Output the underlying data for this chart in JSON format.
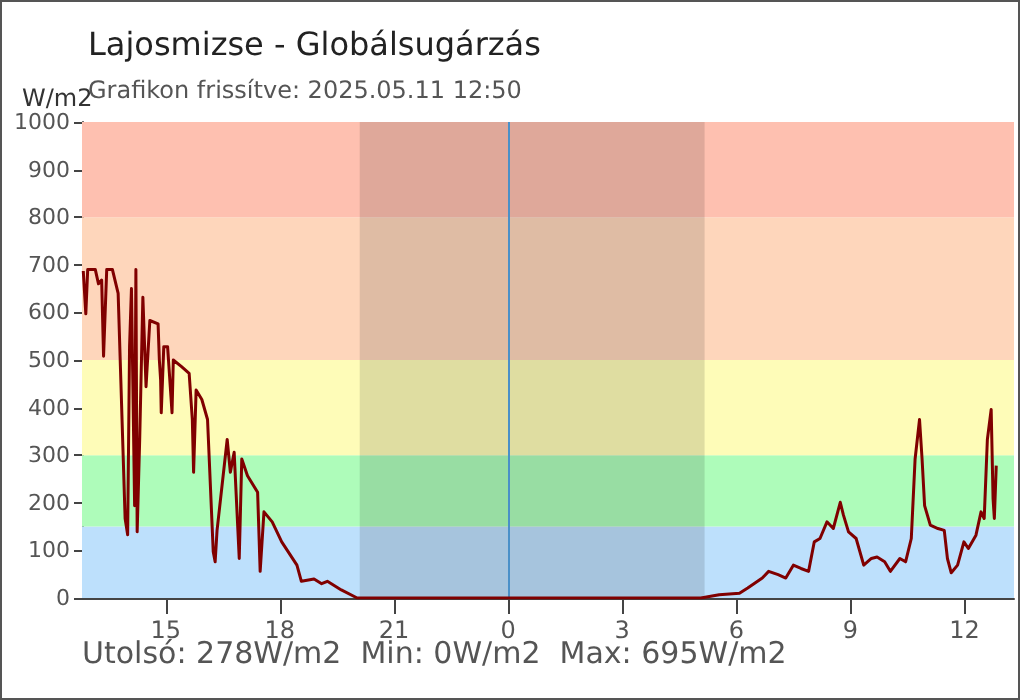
{
  "chart_data": {
    "type": "line",
    "title": "Lajosmizse - Globálsugárzás",
    "subtitle": "Grafikon frissítve: 2025.05.11 12:50",
    "ylabel": "W/m2",
    "annotations": [
      "Utolsó: 278W/m2",
      "Min: 0W/m2",
      "Max: 695W/m2"
    ],
    "xlim": [
      "2025-05-10T12:48",
      "2025-05-11T13:18"
    ],
    "xticks": [
      {
        "value": "2025-05-10T15:00",
        "label": "15"
      },
      {
        "value": "2025-05-10T18:00",
        "label": "18"
      },
      {
        "value": "2025-05-10T21:00",
        "label": "21"
      },
      {
        "value": "2025-05-11T00:00",
        "label": "0"
      },
      {
        "value": "2025-05-11T03:00",
        "label": "3"
      },
      {
        "value": "2025-05-11T06:00",
        "label": "6"
      },
      {
        "value": "2025-05-11T09:00",
        "label": "9"
      },
      {
        "value": "2025-05-11T12:00",
        "label": "12"
      }
    ],
    "ylim": [
      0,
      1000
    ],
    "yticks": [
      0,
      100,
      200,
      300,
      400,
      500,
      600,
      700,
      800,
      900,
      1000
    ],
    "bands": [
      {
        "axis": "y",
        "from": 0,
        "to": 150,
        "color": "#bde0fc"
      },
      {
        "axis": "y",
        "from": 150,
        "to": 300,
        "color": "#aefcba"
      },
      {
        "axis": "y",
        "from": 300,
        "to": 500,
        "color": "#fefcb8"
      },
      {
        "axis": "y",
        "from": 500,
        "to": 800,
        "color": "#fed6bb"
      },
      {
        "axis": "y",
        "from": 800,
        "to": 1000,
        "color": "#fec0b0"
      },
      {
        "axis": "x",
        "from": "2025-05-10T20:06",
        "to": "2025-05-11T05:10",
        "color": "#000000"
      }
    ],
    "ref_lines": [
      {
        "axis": "x",
        "value": "2025-05-11T00:00",
        "color": "#4a90c8"
      }
    ],
    "series": [
      {
        "color": "#800000",
        "x": [
          "2025-05-10T12:50",
          "2025-05-10T12:54",
          "2025-05-10T12:57",
          "2025-05-10T13:09",
          "2025-05-10T13:14",
          "2025-05-10T13:19",
          "2025-05-10T13:22",
          "2025-05-10T13:27",
          "2025-05-10T13:36",
          "2025-05-10T13:45",
          "2025-05-10T13:56",
          "2025-05-10T14:00",
          "2025-05-10T14:03",
          "2025-05-10T14:06",
          "2025-05-10T14:11",
          "2025-05-10T14:13",
          "2025-05-10T14:15",
          "2025-05-10T14:19",
          "2025-05-10T14:24",
          "2025-05-10T14:29",
          "2025-05-10T14:35",
          "2025-05-10T14:48",
          "2025-05-10T14:50",
          "2025-05-10T14:52",
          "2025-05-10T14:53",
          "2025-05-10T14:57",
          "2025-05-10T15:03",
          "2025-05-10T15:10",
          "2025-05-10T15:12",
          "2025-05-10T15:25",
          "2025-05-10T15:37",
          "2025-05-10T15:42",
          "2025-05-10T15:44",
          "2025-05-10T15:48",
          "2025-05-10T15:57",
          "2025-05-10T16:06",
          "2025-05-10T16:15",
          "2025-05-10T16:18",
          "2025-05-10T16:21",
          "2025-05-10T16:37",
          "2025-05-10T16:42",
          "2025-05-10T16:48",
          "2025-05-10T16:56",
          "2025-05-10T17:00",
          "2025-05-10T17:09",
          "2025-05-10T17:25",
          "2025-05-10T17:29",
          "2025-05-10T17:35",
          "2025-05-10T17:48",
          "2025-05-10T18:03",
          "2025-05-10T18:27",
          "2025-05-10T18:34",
          "2025-05-10T18:54",
          "2025-05-10T19:06",
          "2025-05-10T19:15",
          "2025-05-10T19:37",
          "2025-05-10T20:02",
          "2025-05-10T20:12",
          "2025-05-11T05:04",
          "2025-05-11T05:33",
          "2025-05-11T06:05",
          "2025-05-11T06:18",
          "2025-05-11T06:41",
          "2025-05-11T06:51",
          "2025-05-11T07:06",
          "2025-05-11T07:18",
          "2025-05-11T07:30",
          "2025-05-11T07:42",
          "2025-05-11T07:54",
          "2025-05-11T08:03",
          "2025-05-11T08:12",
          "2025-05-11T08:23",
          "2025-05-11T08:33",
          "2025-05-11T08:44",
          "2025-05-11T08:49",
          "2025-05-11T08:57",
          "2025-05-11T09:09",
          "2025-05-11T09:21",
          "2025-05-11T09:33",
          "2025-05-11T09:42",
          "2025-05-11T09:54",
          "2025-05-11T10:03",
          "2025-05-11T10:18",
          "2025-05-11T10:27",
          "2025-05-11T10:36",
          "2025-05-11T10:42",
          "2025-05-11T10:49",
          "2025-05-11T10:53",
          "2025-05-11T10:57",
          "2025-05-11T11:06",
          "2025-05-11T11:18",
          "2025-05-11T11:28",
          "2025-05-11T11:33",
          "2025-05-11T11:39",
          "2025-05-11T11:49",
          "2025-05-11T11:59",
          "2025-05-11T12:06",
          "2025-05-11T12:18",
          "2025-05-11T12:26",
          "2025-05-11T12:31",
          "2025-05-11T12:36",
          "2025-05-11T12:42",
          "2025-05-11T12:45",
          "2025-05-11T12:47",
          "2025-05-11T12:50"
        ],
        "values": [
          687,
          597,
          690,
          690,
          660,
          668,
          508,
          690,
          690,
          640,
          167,
          133,
          528,
          650,
          194,
          690,
          139,
          333,
          632,
          444,
          583,
          576,
          500,
          458,
          389,
          528,
          528,
          389,
          500,
          486,
          472,
          375,
          264,
          437,
          417,
          375,
          97,
          76,
          142,
          333,
          264,
          306,
          83,
          292,
          257,
          222,
          56,
          181,
          160,
          118,
          69,
          35,
          40,
          30,
          35,
          17,
          0,
          0,
          0,
          7,
          10,
          21,
          42,
          56,
          49,
          42,
          69,
          62,
          56,
          118,
          125,
          160,
          146,
          201,
          174,
          139,
          125,
          69,
          83,
          86,
          76,
          56,
          83,
          76,
          125,
          292,
          375,
          292,
          194,
          153,
          146,
          142,
          83,
          53,
          69,
          118,
          104,
          132,
          181,
          167,
          333,
          396,
          208,
          167,
          278
        ]
      }
    ]
  }
}
